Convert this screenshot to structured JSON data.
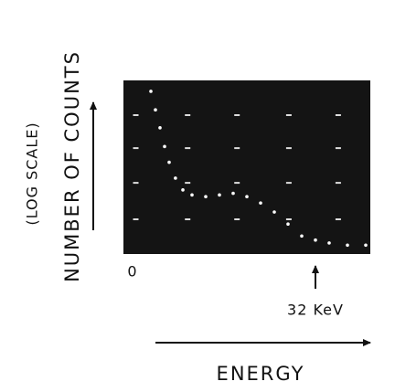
{
  "chart_data": {
    "type": "scatter",
    "x_label": "ENERGY",
    "y_label": "NUMBER OF COUNTS",
    "y_note": "(LOG SCALE)",
    "x": [
      3.2,
      4.0,
      4.8,
      5.6,
      6.4,
      7.5,
      8.8,
      10.4,
      12.8,
      15.2,
      17.6,
      20,
      22.4,
      24.8,
      27.2,
      29.6,
      32,
      34.4,
      37.6,
      40.8
    ],
    "values": [
      5600,
      2100,
      810,
      300,
      130,
      56,
      30,
      23,
      21,
      23,
      25,
      21,
      15,
      9.3,
      4.9,
      2.6,
      2.1,
      1.8,
      1.6,
      1.6
    ],
    "xlim": [
      -1.6,
      41.6
    ],
    "ylim": [
      1,
      10000
    ],
    "yscale": "log",
    "xticks": [
      0,
      {
        "value": 32,
        "label": "32 KeV"
      }
    ],
    "color": "#ffffff",
    "grid": true
  }
}
